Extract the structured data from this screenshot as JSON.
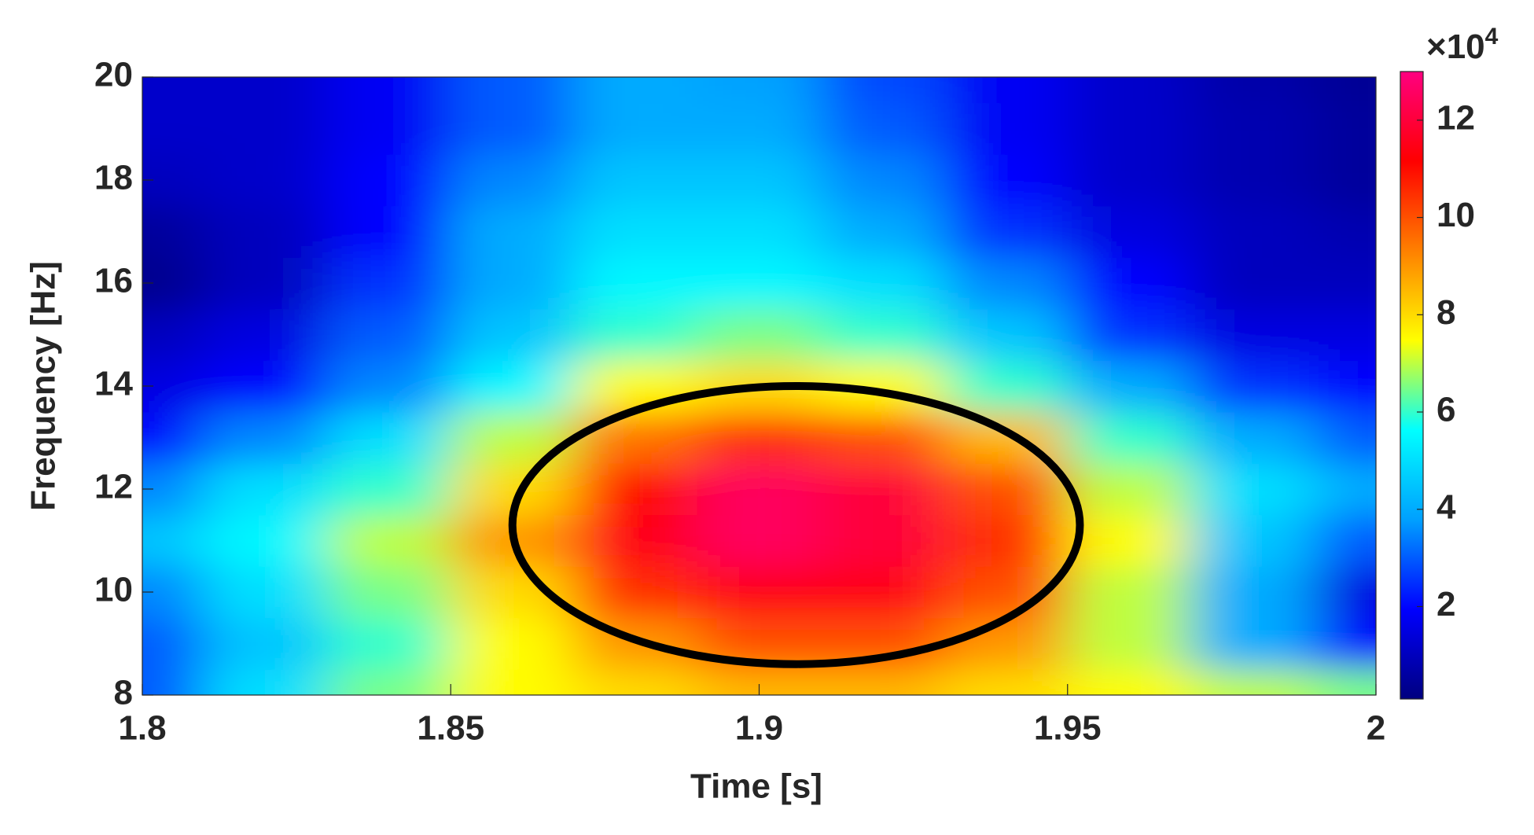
{
  "chart_data": {
    "type": "heatmap",
    "xlabel": "Time [s]",
    "ylabel": "Frequency [Hz]",
    "x": [
      1.8,
      1.82,
      1.84,
      1.86,
      1.88,
      1.9,
      1.92,
      1.94,
      1.96,
      1.98,
      2.0
    ],
    "y": [
      8,
      9,
      10,
      11,
      12,
      13,
      14,
      15,
      16,
      17,
      18,
      19,
      20
    ],
    "z": [
      [
        3,
        5,
        6.5,
        7.5,
        8,
        8.5,
        8.5,
        8,
        7.5,
        7,
        6.5
      ],
      [
        3,
        4.5,
        6,
        7.5,
        9,
        10,
        10,
        9,
        7,
        4,
        2
      ],
      [
        3.5,
        5,
        6.5,
        8,
        10.5,
        11.5,
        11.5,
        10,
        7,
        4,
        1.5
      ],
      [
        4.5,
        5.5,
        7,
        9,
        11.5,
        12.5,
        12,
        10.5,
        7.5,
        4.5,
        3
      ],
      [
        3.5,
        5,
        6,
        8,
        11,
        12.5,
        12,
        10,
        7,
        5,
        4
      ],
      [
        2,
        3.5,
        5,
        7,
        9.5,
        10.5,
        10,
        8.5,
        6,
        4,
        3
      ],
      [
        1.5,
        2,
        3.5,
        5.5,
        7.5,
        8,
        7.5,
        6,
        4,
        2.5,
        2
      ],
      [
        1,
        1.5,
        3,
        4.5,
        6,
        6.5,
        6,
        4.5,
        2.5,
        1.5,
        1.5
      ],
      [
        0.3,
        1,
        2.5,
        4,
        5.5,
        5.5,
        5,
        3.5,
        2,
        1,
        1
      ],
      [
        0.5,
        1,
        2,
        4,
        5,
        5,
        4,
        2.5,
        1.5,
        1,
        0.8
      ],
      [
        1,
        1.2,
        2,
        3.5,
        4.5,
        4.5,
        3.5,
        2,
        1.2,
        0.8,
        0.5
      ],
      [
        1.2,
        1.2,
        1.8,
        3,
        4,
        4,
        3,
        1.8,
        1.2,
        0.8,
        0.5
      ],
      [
        1.2,
        1.2,
        1.8,
        3,
        4,
        3.8,
        2.8,
        1.8,
        1.2,
        0.7,
        0.4
      ]
    ],
    "xlim": [
      1.8,
      2.0
    ],
    "xticks": [
      1.8,
      1.85,
      1.9,
      1.95,
      2
    ],
    "ylim": [
      8,
      20
    ],
    "yticks": [
      8,
      10,
      12,
      14,
      16,
      18,
      20
    ],
    "colormap": [
      "#00007f",
      "#0000ff",
      "#00a0ff",
      "#00ffff",
      "#ffff00",
      "#ff8000",
      "#ff0000",
      "#ff0080"
    ],
    "clim": [
      0.1,
      13
    ],
    "cticks": [
      2,
      4,
      6,
      8,
      10,
      12
    ],
    "colorbar_label": "×10",
    "colorbar_exponent": "4",
    "ellipse": {
      "center": [
        1.906,
        11.3
      ],
      "radii": [
        0.046,
        2.7
      ],
      "color": "#000000"
    }
  }
}
